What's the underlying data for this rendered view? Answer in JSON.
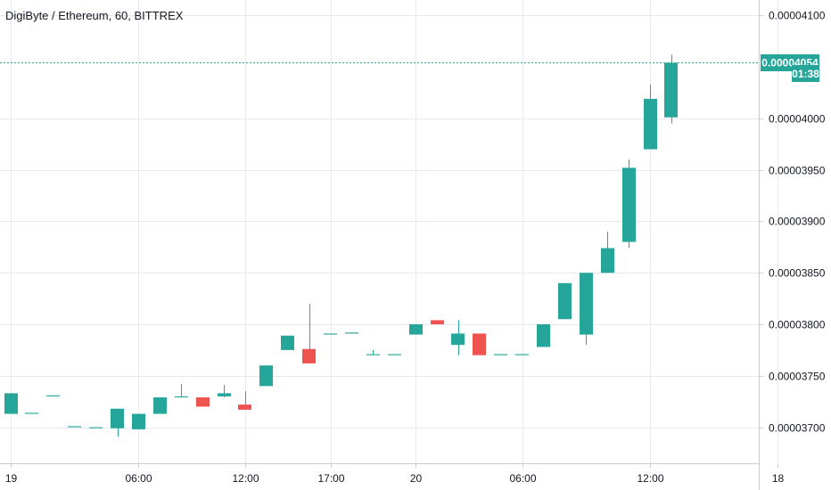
{
  "chart_data": {
    "type": "candlestick",
    "title": "DigiByte / Ethereum, 60, BITTREX",
    "y_ticks": [
      "0.00004100",
      "0.00004000",
      "0.00003950",
      "0.00003900",
      "0.00003850",
      "0.00003800",
      "0.00003750",
      "0.00003700"
    ],
    "y_tick_values": [
      4.1e-05,
      4e-05,
      3.95e-05,
      3.9e-05,
      3.85e-05,
      3.8e-05,
      3.75e-05,
      3.7e-05
    ],
    "ylim": [
      3.665e-05,
      4.115e-05
    ],
    "x_tick_labels": [
      {
        "label": "19",
        "bar": 0
      },
      {
        "label": "06:00",
        "bar": 6
      },
      {
        "label": "12:00",
        "bar": 11
      },
      {
        "label": "17:00",
        "bar": 15
      },
      {
        "label": "20",
        "bar": 19
      },
      {
        "label": "06:00",
        "bar": 24
      },
      {
        "label": "12:00",
        "bar": 30
      },
      {
        "label": "18",
        "bar": 36
      }
    ],
    "last_price": {
      "label": "0.00004054",
      "value": 4.054e-05
    },
    "countdown": "01:38",
    "grid": true,
    "colors": {
      "up": "#26a69a",
      "down": "#ef5350",
      "grid": "#e6e9ef",
      "text": "#131722",
      "axis": "#c8ccd3",
      "badge": "#26a69a"
    },
    "candles": [
      {
        "o": 3.713e-05,
        "h": 3.733e-05,
        "l": 3.713e-05,
        "c": 3.733e-05
      },
      {
        "o": 3.713e-05,
        "h": 3.713e-05,
        "l": 3.713e-05,
        "c": 3.714e-05
      },
      {
        "o": 3.73e-05,
        "h": 3.73e-05,
        "l": 3.73e-05,
        "c": 3.731e-05
      },
      {
        "o": 3.7e-05,
        "h": 3.7e-05,
        "l": 3.7e-05,
        "c": 3.701e-05
      },
      {
        "o": 3.699e-05,
        "h": 3.699e-05,
        "l": 3.699e-05,
        "c": 3.7e-05
      },
      {
        "o": 3.699e-05,
        "h": 3.718e-05,
        "l": 3.691e-05,
        "c": 3.718e-05
      },
      {
        "o": 3.698e-05,
        "h": 3.713e-05,
        "l": 3.698e-05,
        "c": 3.713e-05
      },
      {
        "o": 3.713e-05,
        "h": 3.729e-05,
        "l": 3.713e-05,
        "c": 3.729e-05
      },
      {
        "o": 3.729e-05,
        "h": 3.742e-05,
        "l": 3.729e-05,
        "c": 3.73e-05
      },
      {
        "o": 3.729e-05,
        "h": 3.729e-05,
        "l": 3.72e-05,
        "c": 3.72e-05
      },
      {
        "o": 3.73e-05,
        "h": 3.741e-05,
        "l": 3.729e-05,
        "c": 3.733e-05
      },
      {
        "o": 3.722e-05,
        "h": 3.735e-05,
        "l": 3.717e-05,
        "c": 3.717e-05
      },
      {
        "o": 3.74e-05,
        "h": 3.76e-05,
        "l": 3.74e-05,
        "c": 3.76e-05
      },
      {
        "o": 3.775e-05,
        "h": 3.789e-05,
        "l": 3.775e-05,
        "c": 3.789e-05
      },
      {
        "o": 3.776e-05,
        "h": 3.82e-05,
        "l": 3.762e-05,
        "c": 3.762e-05
      },
      {
        "o": 3.79e-05,
        "h": 3.79e-05,
        "l": 3.79e-05,
        "c": 3.791e-05
      },
      {
        "o": 3.791e-05,
        "h": 3.791e-05,
        "l": 3.791e-05,
        "c": 3.792e-05
      },
      {
        "o": 3.77e-05,
        "h": 3.775e-05,
        "l": 3.77e-05,
        "c": 3.771e-05
      },
      {
        "o": 3.77e-05,
        "h": 3.77e-05,
        "l": 3.77e-05,
        "c": 3.771e-05
      },
      {
        "o": 3.79e-05,
        "h": 3.8e-05,
        "l": 3.79e-05,
        "c": 3.8e-05
      },
      {
        "o": 3.804e-05,
        "h": 3.804e-05,
        "l": 3.8e-05,
        "c": 3.8e-05
      },
      {
        "o": 3.78e-05,
        "h": 3.804e-05,
        "l": 3.77e-05,
        "c": 3.791e-05
      },
      {
        "o": 3.791e-05,
        "h": 3.791e-05,
        "l": 3.77e-05,
        "c": 3.77e-05
      },
      {
        "o": 3.77e-05,
        "h": 3.77e-05,
        "l": 3.77e-05,
        "c": 3.771e-05
      },
      {
        "o": 3.77e-05,
        "h": 3.77e-05,
        "l": 3.77e-05,
        "c": 3.771e-05
      },
      {
        "o": 3.778e-05,
        "h": 3.8e-05,
        "l": 3.778e-05,
        "c": 3.8e-05
      },
      {
        "o": 3.805e-05,
        "h": 3.84e-05,
        "l": 3.805e-05,
        "c": 3.84e-05
      },
      {
        "o": 3.79e-05,
        "h": 3.85e-05,
        "l": 3.78e-05,
        "c": 3.85e-05
      },
      {
        "o": 3.85e-05,
        "h": 3.89e-05,
        "l": 3.85e-05,
        "c": 3.874e-05
      },
      {
        "o": 3.88e-05,
        "h": 3.96e-05,
        "l": 3.874e-05,
        "c": 3.952e-05
      },
      {
        "o": 3.97e-05,
        "h": 4.033e-05,
        "l": 3.97e-05,
        "c": 4.019e-05
      },
      {
        "o": 4.001e-05,
        "h": 4.062e-05,
        "l": 3.995e-05,
        "c": 4.054e-05
      }
    ]
  }
}
